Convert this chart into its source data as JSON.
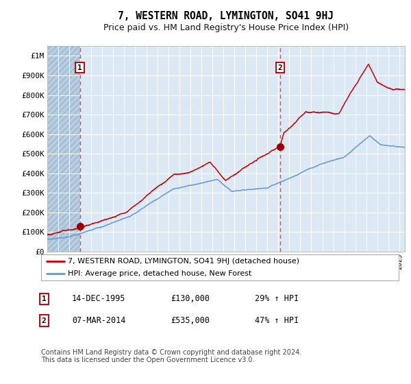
{
  "title": "7, WESTERN ROAD, LYMINGTON, SO41 9HJ",
  "subtitle": "Price paid vs. HM Land Registry's House Price Index (HPI)",
  "red_label": "7, WESTERN ROAD, LYMINGTON, SO41 9HJ (detached house)",
  "blue_label": "HPI: Average price, detached house, New Forest",
  "annotation1": {
    "num": "1",
    "date": "14-DEC-1995",
    "price": "£130,000",
    "pct": "29% ↑ HPI"
  },
  "annotation2": {
    "num": "2",
    "date": "07-MAR-2014",
    "price": "£535,000",
    "pct": "47% ↑ HPI"
  },
  "footnote": "Contains HM Land Registry data © Crown copyright and database right 2024.\nThis data is licensed under the Open Government Licence v3.0.",
  "ylim": [
    0,
    1050000
  ],
  "yticks": [
    0,
    100000,
    200000,
    300000,
    400000,
    500000,
    600000,
    700000,
    800000,
    900000,
    1000000
  ],
  "ytick_labels": [
    "£0",
    "£100K",
    "£200K",
    "£300K",
    "£400K",
    "£500K",
    "£600K",
    "£700K",
    "£800K",
    "£900K",
    "£1M"
  ],
  "background_color": "#dce9f5",
  "hatch_color": "#b8cde0",
  "grid_color": "#ffffff",
  "red_color": "#cc0000",
  "blue_color": "#6699cc",
  "marker_color": "#990000",
  "vline_color": "#ee4444",
  "point1_x": 1995.958,
  "point1_y": 130000,
  "point2_x": 2014.18,
  "point2_y": 535000,
  "x_start": 1993,
  "x_end": 2025.5,
  "xticks": [
    1993,
    1994,
    1995,
    1996,
    1997,
    1998,
    1999,
    2000,
    2001,
    2002,
    2003,
    2004,
    2005,
    2006,
    2007,
    2008,
    2009,
    2010,
    2011,
    2012,
    2013,
    2014,
    2015,
    2016,
    2017,
    2018,
    2019,
    2020,
    2021,
    2022,
    2023,
    2024,
    2025
  ]
}
